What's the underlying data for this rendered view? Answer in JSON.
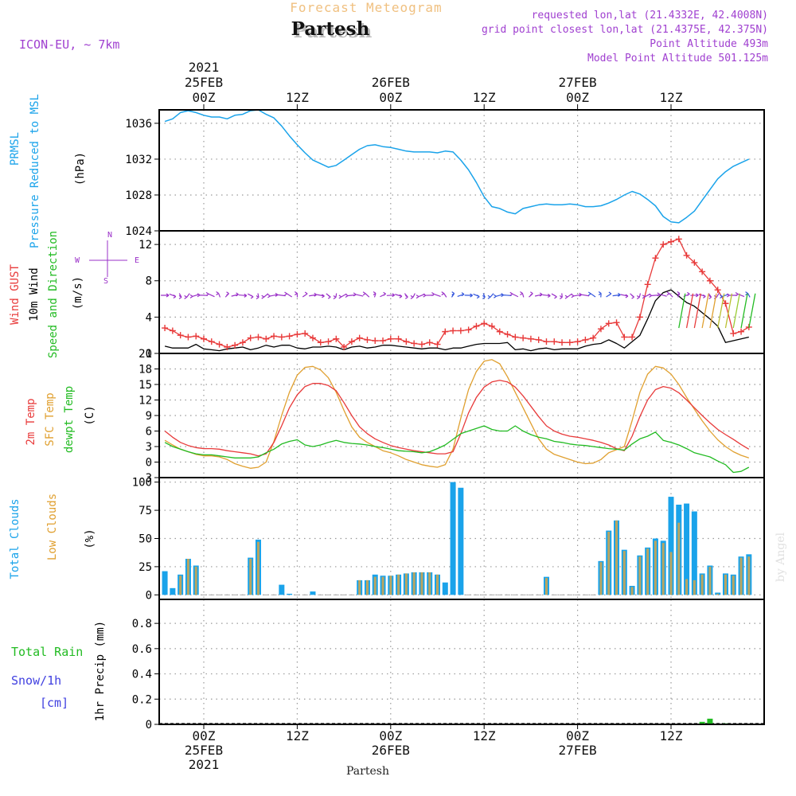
{
  "header": {
    "top_title": "Forecast Meteogram",
    "station": "Partesh",
    "model": "ICON-EU, ~ 7km",
    "requested": "requested lon,lat (21.4332E, 42.4008N)",
    "grid_point": "grid point closest lon,lat (21.4375E, 42.375N)",
    "point_alt": "Point Altitude 493m",
    "model_alt": "Model Point Altitude 501.125m",
    "watermark": "by Angel",
    "footer_station": "Partesh"
  },
  "time_axis": {
    "top": [
      {
        "t": 0,
        "lines": [
          "2021",
          "25FEB",
          "00Z"
        ]
      },
      {
        "t": 12,
        "lines": [
          "12Z"
        ]
      },
      {
        "t": 24,
        "lines": [
          "26FEB",
          "00Z"
        ]
      },
      {
        "t": 36,
        "lines": [
          "12Z"
        ]
      },
      {
        "t": 48,
        "lines": [
          "27FEB",
          "00Z"
        ]
      },
      {
        "t": 60,
        "lines": [
          "12Z"
        ]
      }
    ],
    "bottom": [
      {
        "t": 0,
        "lines": [
          "00Z",
          "25FEB",
          "2021"
        ]
      },
      {
        "t": 12,
        "lines": [
          "12Z"
        ]
      },
      {
        "t": 24,
        "lines": [
          "00Z",
          "26FEB"
        ]
      },
      {
        "t": 36,
        "lines": [
          "12Z"
        ]
      },
      {
        "t": 48,
        "lines": [
          "00Z",
          "27FEB"
        ]
      },
      {
        "t": 60,
        "lines": [
          "12Z"
        ]
      }
    ]
  },
  "panel_labels": {
    "pressure": {
      "lines": [
        {
          "text": "PRMSL",
          "color": "#1aa3ea"
        },
        {
          "text": "Pressure Reduced to MSL",
          "color": "#1aa3ea"
        },
        {
          "text": "(hPa)",
          "color": "#000000"
        }
      ]
    },
    "wind": {
      "lines": [
        {
          "text": "Wind GUST",
          "color": "#e83a3a"
        },
        {
          "text": "10m Wind",
          "color": "#000000"
        },
        {
          "text": "Speed and Direction",
          "color": "#22bb22"
        },
        {
          "text": "(m/s)",
          "color": "#000000"
        }
      ],
      "compass": {
        "n": "N",
        "s": "S",
        "w": "W",
        "e": "E"
      }
    },
    "temp": {
      "lines": [
        {
          "text": "2m Temp",
          "color": "#e83a3a"
        },
        {
          "text": "SFC Temp",
          "color": "#e0a030"
        },
        {
          "text": "dewpt Temp",
          "color": "#22bb22"
        },
        {
          "text": "(C)",
          "color": "#000000"
        }
      ]
    },
    "clouds": {
      "lines": [
        {
          "text": "Total Clouds",
          "color": "#1aa3ea"
        },
        {
          "text": "Low Clouds",
          "color": "#e0a030"
        },
        {
          "text": "(%)",
          "color": "#000000"
        }
      ]
    },
    "precip": {
      "total_rain": "Total  Rain",
      "snow": "Snow/1h",
      "snow_unit": "[cm]",
      "axis": "1hr Precip (mm)"
    }
  },
  "colors": {
    "pressure": "#1aa3ea",
    "gust": "#e83a3a",
    "wind": "#000000",
    "arrows": "#9a30c8",
    "t2m": "#e83a3a",
    "tsfc": "#e0a030",
    "dewpt": "#22bb22",
    "total_clouds": "#1aa3ea",
    "low_clouds": "#b9a560",
    "rain": "#22bb22",
    "header_title": "#f0c080",
    "header_info": "#a040d0"
  },
  "chart_data": [
    {
      "type": "line",
      "title": "PRMSL Pressure Reduced to MSL",
      "ylabel": "(hPa)",
      "ylim": [
        1024,
        1037.5
      ],
      "yticks": [
        1024,
        1028,
        1032,
        1036
      ],
      "x_hours": [
        -5,
        -4,
        -3,
        -2,
        -1,
        0,
        1,
        2,
        3,
        4,
        5,
        6,
        7,
        8,
        9,
        10,
        11,
        12,
        13,
        14,
        15,
        16,
        17,
        18,
        19,
        20,
        21,
        22,
        23,
        24,
        25,
        26,
        27,
        28,
        29,
        30,
        31,
        32,
        33,
        34,
        35,
        36,
        37,
        38,
        39,
        40,
        41,
        42,
        43,
        44,
        45,
        46,
        47,
        48,
        49,
        50,
        51,
        52,
        53,
        54,
        55,
        56,
        57,
        58,
        59,
        60,
        61,
        62,
        63,
        64,
        65,
        66,
        67,
        68,
        69,
        70
      ],
      "series": [
        {
          "name": "PRMSL",
          "values": [
            1036.2,
            1036.5,
            1037.2,
            1037.4,
            1037.2,
            1036.9,
            1036.7,
            1036.7,
            1036.5,
            1036.9,
            1037.0,
            1037.4,
            1037.5,
            1037.0,
            1036.6,
            1035.7,
            1034.6,
            1033.6,
            1032.7,
            1031.9,
            1031.5,
            1031.1,
            1031.3,
            1031.9,
            1032.5,
            1033.1,
            1033.5,
            1033.6,
            1033.4,
            1033.3,
            1033.1,
            1032.9,
            1032.8,
            1032.8,
            1032.8,
            1032.7,
            1032.9,
            1032.8,
            1031.9,
            1030.8,
            1029.4,
            1027.8,
            1026.7,
            1026.5,
            1026.1,
            1025.9,
            1026.5,
            1026.7,
            1026.9,
            1027.0,
            1026.9,
            1026.9,
            1027.0,
            1026.9,
            1026.7,
            1026.7,
            1026.8,
            1027.1,
            1027.5,
            1028.0,
            1028.4,
            1028.1,
            1027.5,
            1026.8,
            1025.6,
            1025.0,
            1024.9,
            1025.5,
            1026.2,
            1027.4,
            1028.6,
            1029.8,
            1030.6,
            1031.2,
            1031.6,
            1032.0
          ]
        }
      ]
    },
    {
      "type": "line",
      "title": "Wind GUST / 10m Wind Speed and Direction",
      "ylabel": "(m/s)",
      "ylim": [
        0,
        13.5
      ],
      "yticks": [
        0,
        4,
        8,
        12
      ],
      "x_hours": [
        -5,
        -4,
        -3,
        -2,
        -1,
        0,
        1,
        2,
        3,
        4,
        5,
        6,
        7,
        8,
        9,
        10,
        11,
        12,
        13,
        14,
        15,
        16,
        17,
        18,
        19,
        20,
        21,
        22,
        23,
        24,
        25,
        26,
        27,
        28,
        29,
        30,
        31,
        32,
        33,
        34,
        35,
        36,
        37,
        38,
        39,
        40,
        41,
        42,
        43,
        44,
        45,
        46,
        47,
        48,
        49,
        50,
        51,
        52,
        53,
        54,
        55,
        56,
        57,
        58,
        59,
        60,
        61,
        62,
        63,
        64,
        65,
        66,
        67,
        68,
        69,
        70
      ],
      "series": [
        {
          "name": "Wind GUST",
          "values": [
            2.8,
            2.5,
            2.0,
            1.8,
            1.9,
            1.6,
            1.3,
            1.0,
            0.7,
            0.9,
            1.2,
            1.7,
            1.8,
            1.6,
            1.9,
            1.8,
            1.9,
            2.1,
            2.2,
            1.7,
            1.2,
            1.3,
            1.6,
            0.7,
            1.3,
            1.7,
            1.5,
            1.4,
            1.4,
            1.6,
            1.6,
            1.3,
            1.1,
            1.0,
            1.2,
            1.0,
            2.4,
            2.5,
            2.5,
            2.6,
            3.0,
            3.3,
            3.0,
            2.4,
            2.1,
            1.8,
            1.7,
            1.6,
            1.5,
            1.3,
            1.3,
            1.2,
            1.2,
            1.3,
            1.5,
            1.7,
            2.7,
            3.3,
            3.4,
            1.8,
            1.8,
            4.0,
            7.6,
            10.5,
            12.0,
            12.3,
            12.6,
            10.8,
            10.0,
            9.0,
            8.0,
            7.0,
            5.5,
            2.2,
            2.4,
            2.9
          ]
        },
        {
          "name": "10m Wind",
          "values": [
            0.8,
            0.6,
            0.6,
            0.6,
            1.0,
            0.5,
            0.4,
            0.3,
            0.5,
            0.6,
            0.7,
            0.4,
            0.6,
            0.9,
            0.7,
            0.9,
            0.9,
            0.6,
            0.5,
            0.7,
            0.7,
            0.8,
            0.7,
            0.4,
            0.7,
            0.8,
            0.6,
            0.7,
            0.9,
            0.9,
            0.8,
            0.7,
            0.6,
            0.5,
            0.6,
            0.6,
            0.4,
            0.6,
            0.6,
            0.8,
            1.0,
            1.1,
            1.1,
            1.1,
            1.2,
            0.4,
            0.5,
            0.3,
            0.5,
            0.6,
            0.4,
            0.5,
            0.5,
            0.5,
            0.8,
            1.0,
            1.1,
            1.5,
            1.1,
            0.6,
            1.3,
            2.0,
            3.8,
            5.8,
            6.7,
            7.0,
            6.3,
            5.6,
            5.2,
            4.5,
            3.8,
            3.0,
            1.2,
            1.4,
            1.6,
            1.8
          ]
        }
      ]
    },
    {
      "type": "line",
      "title": "2m Temp / SFC Temp / dewpt Temp",
      "ylabel": "(C)",
      "ylim": [
        -3,
        21
      ],
      "yticks": [
        -3,
        0,
        3,
        6,
        9,
        12,
        15,
        18,
        21
      ],
      "x_hours": [
        -5,
        -4,
        -3,
        -2,
        -1,
        0,
        1,
        2,
        3,
        4,
        5,
        6,
        7,
        8,
        9,
        10,
        11,
        12,
        13,
        14,
        15,
        16,
        17,
        18,
        19,
        20,
        21,
        22,
        23,
        24,
        25,
        26,
        27,
        28,
        29,
        30,
        31,
        32,
        33,
        34,
        35,
        36,
        37,
        38,
        39,
        40,
        41,
        42,
        43,
        44,
        45,
        46,
        47,
        48,
        49,
        50,
        51,
        52,
        53,
        54,
        55,
        56,
        57,
        58,
        59,
        60,
        61,
        62,
        63,
        64,
        65,
        66,
        67,
        68,
        69,
        70
      ],
      "series": [
        {
          "name": "2m Temp",
          "values": [
            6.0,
            4.8,
            3.8,
            3.2,
            2.8,
            2.6,
            2.6,
            2.5,
            2.2,
            2.0,
            1.8,
            1.6,
            1.2,
            1.6,
            3.8,
            7.0,
            10.5,
            13.0,
            14.6,
            15.2,
            15.2,
            14.8,
            13.8,
            11.5,
            9.0,
            6.8,
            5.5,
            4.5,
            3.8,
            3.2,
            2.8,
            2.5,
            2.2,
            2.0,
            1.8,
            1.6,
            1.6,
            2.0,
            5.5,
            9.5,
            12.5,
            14.5,
            15.5,
            15.8,
            15.5,
            14.5,
            12.8,
            10.8,
            8.8,
            7.0,
            6.0,
            5.4,
            5.0,
            4.8,
            4.5,
            4.2,
            3.8,
            3.3,
            2.6,
            2.2,
            5.0,
            8.8,
            12.0,
            14.0,
            14.6,
            14.3,
            13.4,
            12.0,
            10.5,
            9.0,
            7.6,
            6.3,
            5.3,
            4.4,
            3.4,
            2.5
          ]
        },
        {
          "name": "SFC Temp",
          "values": [
            4.2,
            3.3,
            2.5,
            2.0,
            1.5,
            1.2,
            1.2,
            1.0,
            0.5,
            -0.3,
            -0.8,
            -1.2,
            -1.0,
            0.0,
            4.0,
            9.0,
            13.5,
            16.8,
            18.3,
            18.5,
            17.8,
            16.3,
            13.5,
            10.0,
            6.8,
            4.8,
            3.8,
            3.0,
            2.2,
            1.8,
            1.2,
            0.5,
            0.0,
            -0.5,
            -0.8,
            -1.0,
            -0.5,
            2.5,
            8.5,
            14.0,
            17.5,
            19.5,
            19.8,
            19.0,
            16.5,
            13.5,
            10.5,
            7.5,
            4.5,
            2.5,
            1.5,
            1.0,
            0.5,
            0.0,
            -0.3,
            -0.2,
            0.5,
            1.8,
            2.4,
            3.0,
            8.0,
            13.5,
            17.0,
            18.5,
            18.2,
            17.0,
            15.0,
            12.5,
            10.2,
            8.0,
            6.0,
            4.3,
            3.0,
            2.0,
            1.3,
            0.8
          ]
        },
        {
          "name": "dewpt Temp",
          "values": [
            3.8,
            3.0,
            2.5,
            2.0,
            1.6,
            1.4,
            1.4,
            1.2,
            1.0,
            0.8,
            0.8,
            0.8,
            1.0,
            1.8,
            2.5,
            3.5,
            4.0,
            4.3,
            3.3,
            3.0,
            3.3,
            3.8,
            4.2,
            3.8,
            3.6,
            3.5,
            3.3,
            3.0,
            2.8,
            2.5,
            2.2,
            2.1,
            2.0,
            1.8,
            2.0,
            2.6,
            3.3,
            4.4,
            5.5,
            6.0,
            6.5,
            7.0,
            6.3,
            6.0,
            6.0,
            7.0,
            6.0,
            5.3,
            4.8,
            4.5,
            4.0,
            3.8,
            3.5,
            3.3,
            3.2,
            3.0,
            2.8,
            2.6,
            2.5,
            2.3,
            3.5,
            4.5,
            5.0,
            5.8,
            4.2,
            3.8,
            3.3,
            2.6,
            1.8,
            1.4,
            1.0,
            0.2,
            -0.5,
            -2.0,
            -1.8,
            -1.0
          ]
        }
      ]
    },
    {
      "type": "bar",
      "title": "Total Clouds / Low Clouds",
      "ylabel": "(%)",
      "ylim": [
        -4,
        104
      ],
      "yticks": [
        0,
        25,
        50,
        75,
        100
      ],
      "x_hours": [
        -5,
        -4,
        -3,
        -2,
        -1,
        0,
        1,
        2,
        3,
        4,
        5,
        6,
        7,
        8,
        9,
        10,
        11,
        12,
        13,
        14,
        15,
        16,
        17,
        18,
        19,
        20,
        21,
        22,
        23,
        24,
        25,
        26,
        27,
        28,
        29,
        30,
        31,
        32,
        33,
        34,
        35,
        36,
        37,
        38,
        39,
        40,
        41,
        42,
        43,
        44,
        45,
        46,
        47,
        48,
        49,
        50,
        51,
        52,
        53,
        54,
        55,
        56,
        57,
        58,
        59,
        60,
        61,
        62,
        63,
        64,
        65,
        66,
        67,
        68,
        69,
        70
      ],
      "series": [
        {
          "name": "Total Clouds",
          "values": [
            21,
            6,
            18,
            32,
            26,
            0,
            0,
            0,
            0,
            0,
            0,
            33,
            49,
            0,
            0,
            9,
            1,
            0,
            0,
            3,
            0,
            0,
            0,
            0,
            0,
            13,
            13,
            18,
            17,
            17,
            18,
            19,
            20,
            20,
            20,
            18,
            11,
            100,
            95,
            0,
            0,
            0,
            0,
            0,
            0,
            0,
            0,
            0,
            0,
            16,
            0,
            0,
            0,
            0,
            0,
            0,
            30,
            57,
            66,
            40,
            8,
            35,
            42,
            50,
            48,
            87,
            80,
            81,
            74,
            19,
            26,
            2,
            19,
            18,
            34,
            36
          ]
        },
        {
          "name": "Low Clouds",
          "values": [
            0,
            0,
            17,
            32,
            25,
            0,
            0,
            0,
            0,
            0,
            0,
            32,
            47,
            0,
            0,
            0,
            0,
            0,
            0,
            0,
            0,
            0,
            0,
            0,
            0,
            13,
            13,
            16,
            16,
            17,
            18,
            19,
            20,
            20,
            20,
            18,
            0,
            0,
            0,
            0,
            0,
            0,
            0,
            0,
            0,
            0,
            0,
            0,
            0,
            15,
            0,
            0,
            0,
            0,
            0,
            0,
            29,
            56,
            66,
            39,
            7,
            34,
            41,
            48,
            46,
            38,
            64,
            14,
            13,
            18,
            25,
            1,
            18,
            17,
            33,
            34
          ]
        }
      ]
    },
    {
      "type": "bar",
      "title": "1hr Precip",
      "ylabel": "1hr Precip (mm)",
      "ylim": [
        0,
        0.99
      ],
      "yticks": [
        0,
        0.2,
        0.4,
        0.6,
        0.8
      ],
      "x_hours": [
        63,
        64,
        65,
        67
      ],
      "series": [
        {
          "name": "Total Rain",
          "values": [
            0.005,
            0.02,
            0.045,
            0.008
          ]
        }
      ]
    }
  ]
}
